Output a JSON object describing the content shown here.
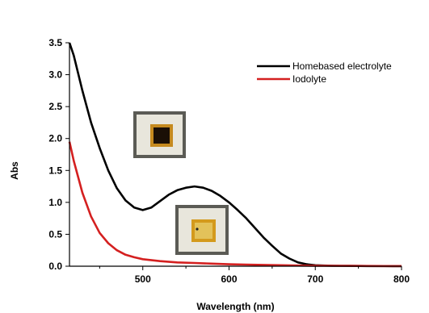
{
  "chart_data": {
    "type": "line",
    "title": "",
    "xlabel": "Wavelength (nm)",
    "ylabel": "Abs",
    "xlim": [
      415,
      800
    ],
    "ylim": [
      0,
      3.5
    ],
    "x_ticks": [
      500,
      600,
      700,
      800
    ],
    "y_ticks": [
      0.0,
      0.5,
      1.0,
      1.5,
      2.0,
      2.5,
      3.0,
      3.5
    ],
    "x_tick_labels": [
      "500",
      "600",
      "700",
      "800"
    ],
    "y_tick_labels": [
      "0.0",
      "0.5",
      "1.0",
      "1.5",
      "2.0",
      "2.5",
      "3.0",
      "3.5"
    ],
    "legend_position": "top-right",
    "series": [
      {
        "name": "Homebased electrolyte",
        "color": "#000000",
        "x": [
          415,
          420,
          430,
          440,
          450,
          460,
          470,
          480,
          490,
          500,
          510,
          520,
          530,
          540,
          550,
          560,
          570,
          580,
          590,
          600,
          610,
          620,
          630,
          640,
          650,
          660,
          670,
          680,
          690,
          700,
          710,
          720,
          730,
          740,
          750,
          760,
          770,
          780,
          790,
          800
        ],
        "y": [
          3.5,
          3.3,
          2.75,
          2.25,
          1.85,
          1.5,
          1.22,
          1.03,
          0.92,
          0.88,
          0.92,
          1.02,
          1.12,
          1.19,
          1.23,
          1.25,
          1.23,
          1.18,
          1.1,
          1.0,
          0.88,
          0.75,
          0.6,
          0.45,
          0.32,
          0.2,
          0.12,
          0.06,
          0.03,
          0.015,
          0.01,
          0.008,
          0.006,
          0.005,
          0.004,
          0.003,
          0.002,
          0.002,
          0.001,
          0.001
        ]
      },
      {
        "name": "Iodolyte",
        "color": "#d42020",
        "x": [
          415,
          420,
          430,
          440,
          450,
          460,
          470,
          480,
          490,
          500,
          520,
          540,
          560,
          580,
          600,
          620,
          640,
          660,
          680,
          700,
          720,
          740,
          760,
          780,
          800
        ],
        "y": [
          1.95,
          1.65,
          1.15,
          0.78,
          0.52,
          0.36,
          0.25,
          0.18,
          0.14,
          0.11,
          0.08,
          0.06,
          0.05,
          0.04,
          0.03,
          0.025,
          0.02,
          0.015,
          0.01,
          0.008,
          0.006,
          0.005,
          0.004,
          0.003,
          0.002
        ]
      }
    ],
    "insets": [
      {
        "name": "cell-photo-dark"
      },
      {
        "name": "cell-photo-light"
      }
    ]
  }
}
